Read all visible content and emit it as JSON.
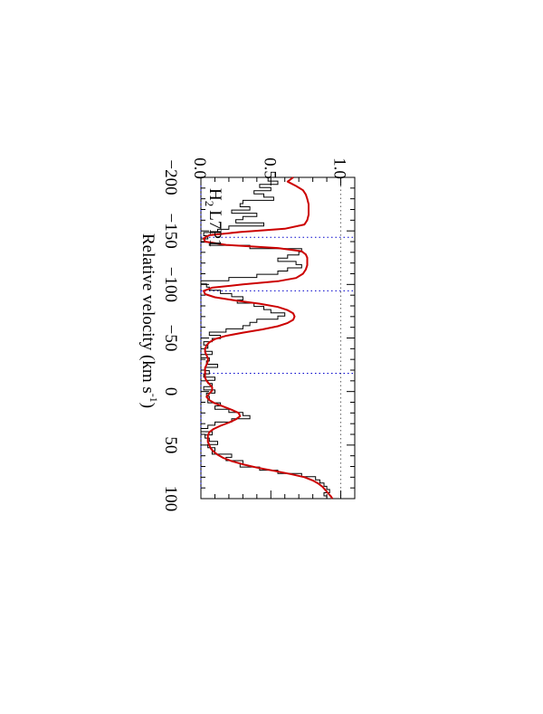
{
  "chart_data": {
    "type": "line",
    "title": "",
    "xlabel": "Relative velocity (km s",
    "xlabel_sup": "-1",
    "xlabel_close": ")",
    "ylabel": "",
    "xlim": [
      -200,
      100
    ],
    "ylim": [
      0,
      1.1
    ],
    "x_ticks": [
      -200,
      -150,
      -100,
      -50,
      0,
      50,
      100
    ],
    "x_tick_labels": [
      "−200",
      "−150",
      "−100",
      "−50",
      "0",
      "50",
      "100"
    ],
    "y_ticks": [
      0,
      0.5,
      1.0
    ],
    "y_tick_labels": [
      "0.0",
      "0.5",
      "1.0"
    ],
    "annotation": {
      "species": "H",
      "sub": "2",
      "transition": "L7P1"
    },
    "component_velocities": [
      -144,
      -94,
      -17
    ],
    "colors": {
      "data": "#000000",
      "model": "#cc0000",
      "reference": "#0000cc",
      "continuum": "#666666"
    },
    "series": [
      {
        "style": "histogram",
        "x": [
          -198,
          -195,
          -192,
          -189,
          -186,
          -183,
          -180,
          -177,
          -174,
          -171,
          -168,
          -165,
          -162,
          -159,
          -156,
          -153,
          -150,
          -147,
          -144,
          -141,
          -138,
          -135,
          -132,
          -129,
          -126,
          -123,
          -120,
          -117,
          -114,
          -111,
          -108,
          -105,
          -102,
          -99,
          -96,
          -93,
          -90,
          -87,
          -84,
          -81,
          -78,
          -75,
          -72,
          -69,
          -66,
          -63,
          -60,
          -57,
          -54,
          -51,
          -48,
          -45,
          -42,
          -39,
          -36,
          -33,
          -30,
          -27,
          -24,
          -21,
          -18,
          -15,
          -12,
          -9,
          -6,
          -3,
          0,
          3,
          6,
          9,
          12,
          15,
          18,
          21,
          24,
          27,
          30,
          33,
          36,
          39,
          42,
          45,
          48,
          51,
          54,
          57,
          60,
          63,
          66,
          69,
          72,
          75,
          78,
          81,
          84,
          87,
          90,
          93,
          96,
          99
        ],
        "values": [
          0.48,
          0.55,
          0.42,
          0.5,
          0.38,
          0.45,
          0.52,
          0.3,
          0.28,
          0.35,
          0.22,
          0.4,
          0.3,
          0.25,
          0.45,
          0.2,
          0.12,
          0.02,
          0.05,
          0.0,
          0.06,
          0.35,
          0.72,
          0.7,
          0.62,
          0.55,
          0.68,
          0.72,
          0.62,
          0.55,
          0.4,
          0.2,
          0.0,
          0.04,
          0.06,
          0.14,
          0.22,
          0.3,
          0.26,
          0.38,
          0.45,
          0.5,
          0.6,
          0.55,
          0.4,
          0.35,
          0.3,
          0.18,
          0.06,
          0.14,
          0.08,
          0.02,
          0.05,
          0.03,
          0.08,
          0.0,
          0.06,
          0.04,
          0.12,
          0.03,
          0.06,
          0.02,
          0.1,
          0.05,
          0.08,
          0.02,
          0.1,
          0.04,
          0.06,
          0.05,
          0.14,
          0.1,
          0.2,
          0.3,
          0.35,
          0.22,
          0.1,
          0.05,
          0.0,
          0.08,
          0.03,
          0.06,
          0.12,
          0.05,
          0.1,
          0.08,
          0.22,
          0.18,
          0.3,
          0.28,
          0.42,
          0.55,
          0.72,
          0.82,
          0.85,
          0.88,
          0.9,
          0.92,
          0.88,
          0.9
        ]
      },
      {
        "style": "smooth",
        "x": [
          -200,
          -196,
          -192,
          -188,
          -184,
          -180,
          -175,
          -170,
          -165,
          -160,
          -156,
          -152,
          -149,
          -146,
          -143,
          -140,
          -137,
          -134,
          -131,
          -128,
          -125,
          -122,
          -118,
          -114,
          -110,
          -106,
          -103,
          -100,
          -97,
          -94,
          -91,
          -88,
          -85,
          -82,
          -79,
          -76,
          -73,
          -70,
          -67,
          -64,
          -61,
          -58,
          -55,
          -52,
          -49,
          -46,
          -43,
          -40,
          -37,
          -34,
          -31,
          -28,
          -25,
          -22,
          -19,
          -16,
          -13,
          -10,
          -7,
          -4,
          -1,
          2,
          5,
          8,
          11,
          14,
          17,
          20,
          23,
          26,
          29,
          32,
          35,
          38,
          41,
          44,
          47,
          50,
          53,
          56,
          59,
          62,
          65,
          68,
          71,
          74,
          77,
          80,
          83,
          86,
          89,
          92,
          95,
          98,
          100
        ],
        "values": [
          0.66,
          0.62,
          0.68,
          0.73,
          0.75,
          0.76,
          0.77,
          0.77,
          0.77,
          0.76,
          0.74,
          0.6,
          0.28,
          0.06,
          0.02,
          0.03,
          0.18,
          0.55,
          0.72,
          0.75,
          0.76,
          0.76,
          0.76,
          0.75,
          0.73,
          0.68,
          0.55,
          0.3,
          0.08,
          0.02,
          0.03,
          0.1,
          0.25,
          0.42,
          0.55,
          0.62,
          0.66,
          0.67,
          0.66,
          0.62,
          0.55,
          0.44,
          0.3,
          0.18,
          0.1,
          0.06,
          0.04,
          0.03,
          0.03,
          0.04,
          0.05,
          0.05,
          0.04,
          0.03,
          0.03,
          0.03,
          0.03,
          0.04,
          0.06,
          0.08,
          0.08,
          0.06,
          0.04,
          0.06,
          0.1,
          0.16,
          0.22,
          0.27,
          0.28,
          0.25,
          0.2,
          0.14,
          0.09,
          0.06,
          0.05,
          0.05,
          0.05,
          0.06,
          0.07,
          0.09,
          0.12,
          0.16,
          0.22,
          0.3,
          0.4,
          0.52,
          0.64,
          0.74,
          0.8,
          0.84,
          0.87,
          0.89,
          0.91,
          0.93,
          0.94
        ]
      }
    ]
  }
}
